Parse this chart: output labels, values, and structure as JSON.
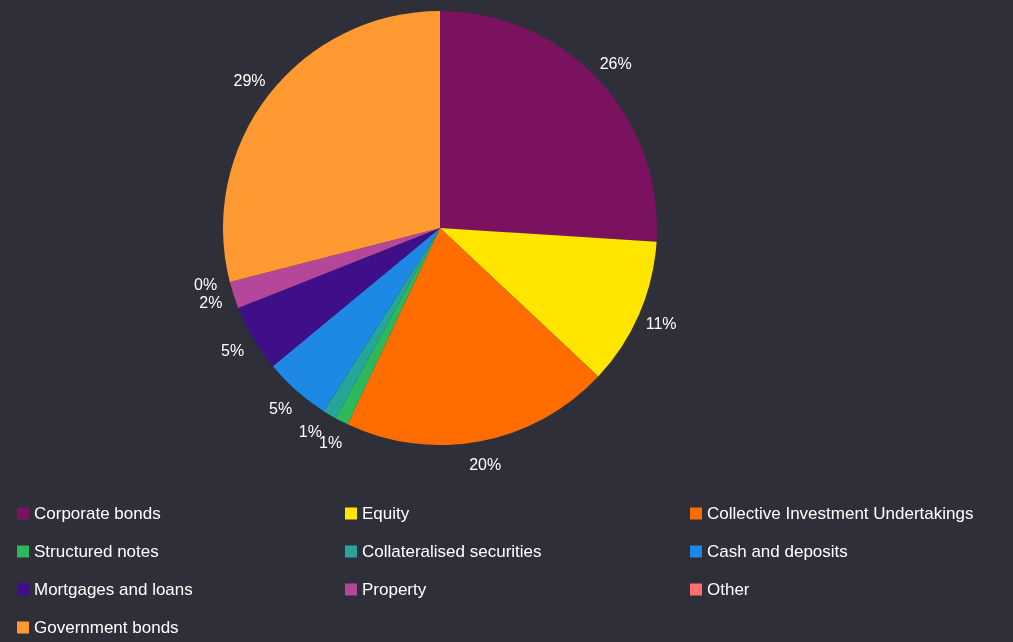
{
  "chart_data": {
    "type": "pie",
    "categories": [
      "Corporate bonds",
      "Equity",
      "Collective Investment Undertakings",
      "Structured notes",
      "Collateralised securities",
      "Cash and deposits",
      "Mortgages and loans",
      "Property",
      "Other",
      "Government bonds"
    ],
    "values": [
      26,
      11,
      20,
      1,
      1,
      5,
      5,
      2,
      0,
      29
    ],
    "value_labels": [
      "26%",
      "11%",
      "20%",
      "1%",
      "1%",
      "5%",
      "5%",
      "2%",
      "0%",
      "29%"
    ],
    "colors": [
      "#7b1260",
      "#ffe600",
      "#ff6d00",
      "#2eb85c",
      "#26a69a",
      "#1e88e5",
      "#3f0f8a",
      "#b5479a",
      "#ff7070",
      "#ff9a33"
    ],
    "legend": "bottom"
  }
}
